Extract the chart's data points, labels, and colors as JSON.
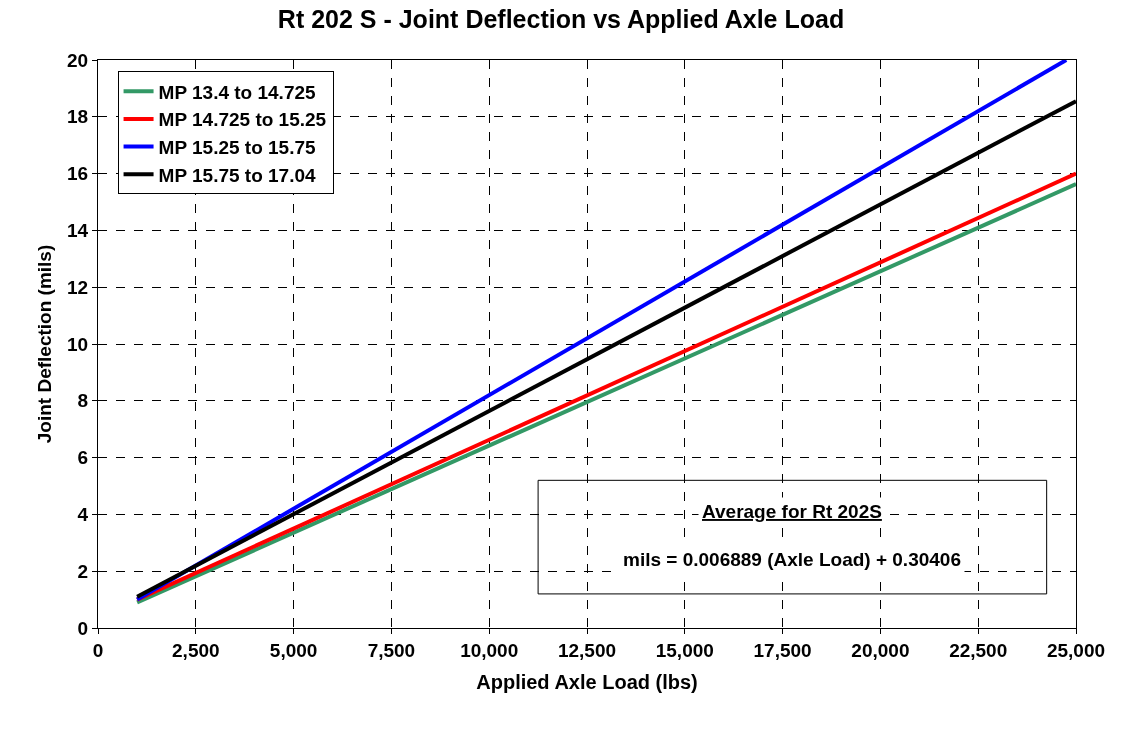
{
  "chart_data": {
    "type": "line",
    "title": "Rt 202 S - Joint Deflection vs Applied Axle Load",
    "xlabel": "Applied Axle Load (lbs)",
    "ylabel": "Joint Deflection (mils)",
    "x": [
      1000,
      25000
    ],
    "series": [
      {
        "name": "MP 13.4 to 14.725",
        "color": "#339966",
        "values": [
          0.9,
          15.63
        ]
      },
      {
        "name": "MP 14.725 to 15.25",
        "color": "#ff0000",
        "values": [
          1.0,
          16.0
        ]
      },
      {
        "name": "MP 15.25 to 15.75",
        "color": "#0000ff",
        "x": [
          1000,
          24750
        ],
        "values": [
          1.0,
          20.0
        ]
      },
      {
        "name": "MP 15.75 to 17.04",
        "color": "#000000",
        "values": [
          1.1,
          18.55
        ]
      }
    ],
    "xlim": [
      0,
      25000
    ],
    "ylim": [
      0,
      20
    ],
    "xticks": [
      0,
      {
        "value": 2500,
        "label": "2,500"
      },
      {
        "value": 5000,
        "label": "5,000"
      },
      {
        "value": 7500,
        "label": "7,500"
      },
      {
        "value": 10000,
        "label": "10,000"
      },
      {
        "value": 12500,
        "label": "12,500"
      },
      {
        "value": 15000,
        "label": "15,000"
      },
      {
        "value": 17500,
        "label": "17,500"
      },
      {
        "value": 20000,
        "label": "20,000"
      },
      {
        "value": 22500,
        "label": "22,500"
      },
      {
        "value": 25000,
        "label": "25,000"
      }
    ],
    "yticks": [
      0,
      2,
      4,
      6,
      8,
      10,
      12,
      14,
      16,
      18,
      20
    ],
    "annotations": [
      "Average for Rt 202S",
      "mils = 0.006889 (Axle Load) + 0.30406"
    ],
    "grid": true,
    "legend": "top left",
    "marker": "none",
    "line_style": "solid"
  }
}
